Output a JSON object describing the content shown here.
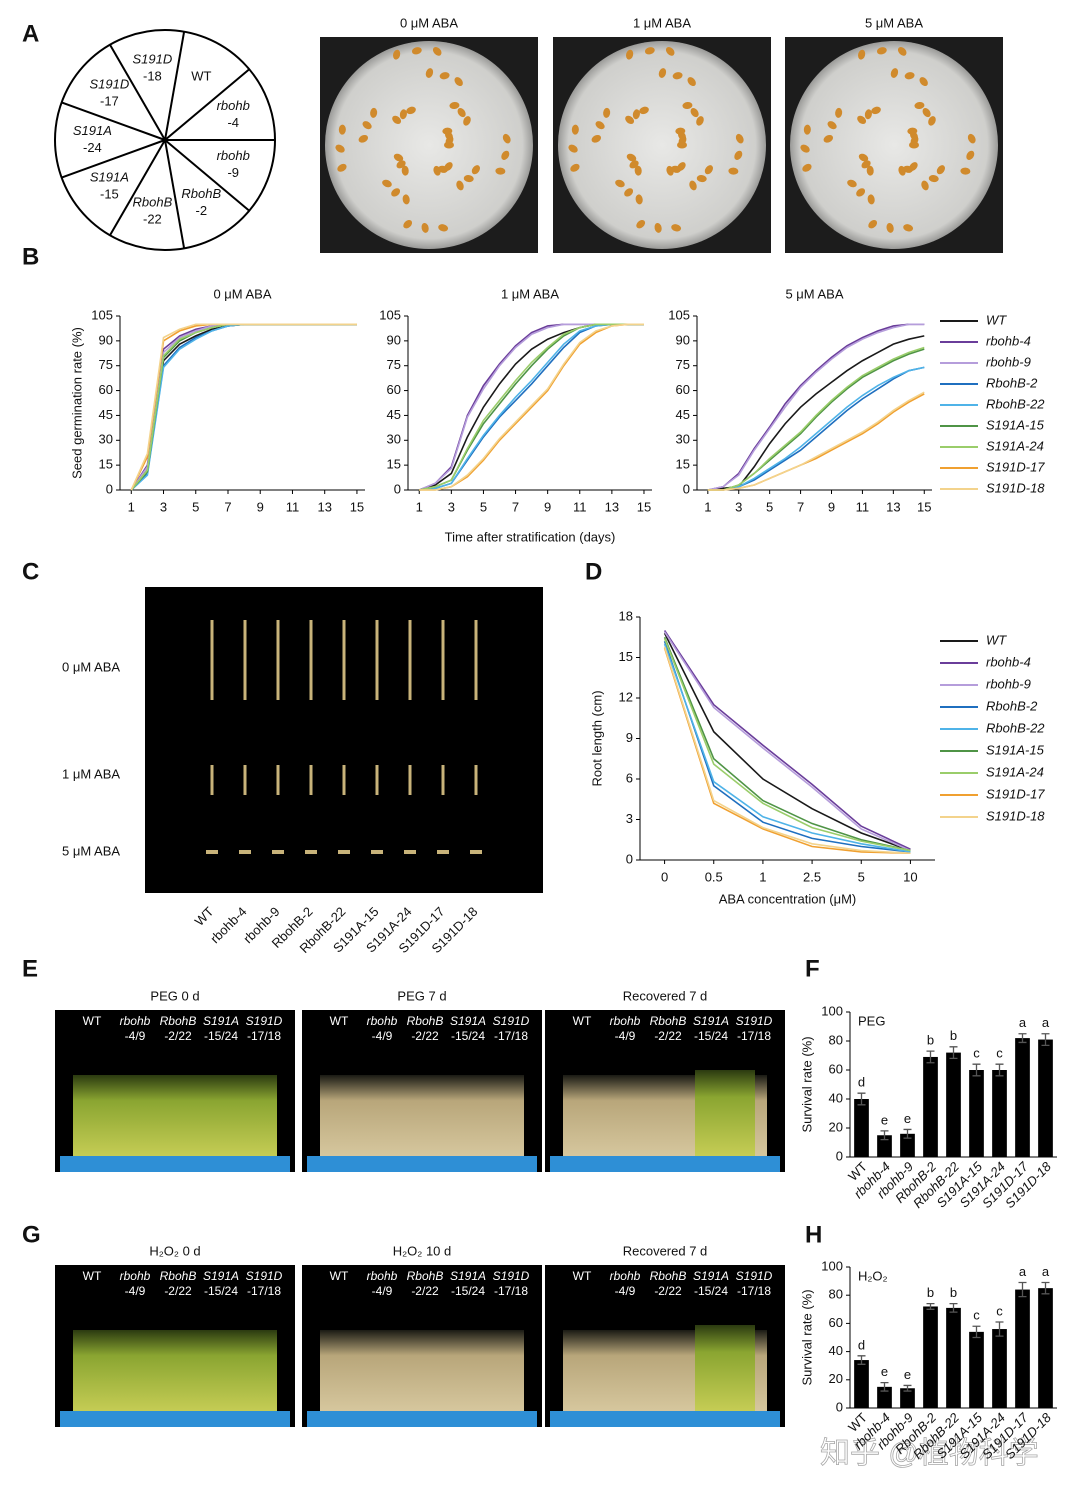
{
  "panel_letters": [
    "A",
    "B",
    "C",
    "D",
    "E",
    "F",
    "G",
    "H"
  ],
  "panel_a": {
    "sectors": [
      [
        "WT"
      ],
      [
        "rbohb",
        "-4"
      ],
      [
        "rbohb",
        "-9"
      ],
      [
        "RbohB",
        "-2"
      ],
      [
        "RbohB",
        "-22"
      ],
      [
        "S191A",
        "-15"
      ],
      [
        "S191A",
        "-24"
      ],
      [
        "S191D",
        "-17"
      ],
      [
        "S191D",
        "-18"
      ]
    ],
    "plate_titles": [
      "0 μM ABA",
      "1 μM ABA",
      "5 μM ABA"
    ]
  },
  "panel_c": {
    "row_labels": [
      "0 μM ABA",
      "1 μM ABA",
      "5 μM ABA"
    ],
    "column_labels": [
      "WT",
      "rbohb-4",
      "rbohb-9",
      "RbohB-2",
      "RbohB-22",
      "S191A-15",
      "S191A-24",
      "S191D-17",
      "S191D-18"
    ]
  },
  "photo_groups": [
    [
      "WT"
    ],
    [
      "rbohb",
      "-4/9"
    ],
    [
      "RbohB",
      "-2/22"
    ],
    [
      "S191A",
      "-15/24"
    ],
    [
      "S191D",
      "-17/18"
    ]
  ],
  "panel_e": {
    "titles": [
      "PEG 0 d",
      "PEG 7 d",
      "Recovered 7 d"
    ]
  },
  "panel_g": {
    "titles": [
      "H₂O₂ 0 d",
      "H₂O₂ 10 d",
      "Recovered 7 d"
    ]
  },
  "watermark": "知乎 @植物科学",
  "chart_data": [
    {
      "type": "line",
      "title": "0 μM ABA",
      "ylabel": "Seed germination rate (%)",
      "x": [
        1,
        2,
        3,
        4,
        5,
        6,
        7,
        8,
        9,
        10,
        11,
        12,
        13,
        14,
        15
      ],
      "xlim": [
        0.3,
        15.5
      ],
      "xticks": [
        1,
        3,
        5,
        7,
        9,
        11,
        13,
        15
      ],
      "ylim": [
        0,
        105
      ],
      "yticks": [
        0,
        15,
        30,
        45,
        60,
        75,
        90,
        105
      ],
      "series": [
        {
          "values": [
            0,
            12,
            78,
            88,
            93,
            97,
            99,
            100,
            100,
            100,
            100,
            100,
            100,
            100,
            100
          ]
        },
        {
          "values": [
            0,
            15,
            85,
            93,
            97,
            99,
            100,
            100,
            100,
            100,
            100,
            100,
            100,
            100,
            100
          ]
        },
        {
          "values": [
            0,
            14,
            83,
            92,
            96,
            99,
            100,
            100,
            100,
            100,
            100,
            100,
            100,
            100,
            100
          ]
        },
        {
          "values": [
            0,
            10,
            75,
            86,
            92,
            96,
            99,
            100,
            100,
            100,
            100,
            100,
            100,
            100,
            100
          ]
        },
        {
          "values": [
            0,
            9,
            74,
            85,
            91,
            96,
            99,
            100,
            100,
            100,
            100,
            100,
            100,
            100,
            100
          ]
        },
        {
          "values": [
            0,
            11,
            80,
            90,
            95,
            98,
            100,
            100,
            100,
            100,
            100,
            100,
            100,
            100,
            100
          ]
        },
        {
          "values": [
            0,
            12,
            81,
            91,
            95,
            98,
            100,
            100,
            100,
            100,
            100,
            100,
            100,
            100,
            100
          ]
        },
        {
          "values": [
            0,
            20,
            90,
            96,
            99,
            100,
            100,
            100,
            100,
            100,
            100,
            100,
            100,
            100,
            100
          ]
        },
        {
          "values": [
            0,
            22,
            92,
            97,
            100,
            100,
            100,
            100,
            100,
            100,
            100,
            100,
            100,
            100,
            100
          ]
        }
      ]
    },
    {
      "type": "line",
      "title": "1 μM ABA",
      "xlabel": "Time after stratification (days)",
      "x": [
        1,
        2,
        3,
        4,
        5,
        6,
        7,
        8,
        9,
        10,
        11,
        12,
        13,
        14,
        15
      ],
      "xlim": [
        0.3,
        15.5
      ],
      "xticks": [
        1,
        3,
        5,
        7,
        9,
        11,
        13,
        15
      ],
      "ylim": [
        0,
        105
      ],
      "yticks": [
        0,
        15,
        30,
        45,
        60,
        75,
        90,
        105
      ],
      "series": [
        {
          "values": [
            0,
            3,
            10,
            32,
            50,
            64,
            76,
            85,
            91,
            95,
            98,
            100,
            100,
            100,
            100
          ]
        },
        {
          "values": [
            0,
            4,
            14,
            45,
            63,
            76,
            87,
            95,
            99,
            100,
            100,
            100,
            100,
            100,
            100
          ]
        },
        {
          "values": [
            0,
            4,
            13,
            44,
            61,
            75,
            86,
            94,
            98,
            100,
            100,
            100,
            100,
            100,
            100
          ]
        },
        {
          "values": [
            0,
            1,
            4,
            18,
            32,
            44,
            54,
            64,
            75,
            86,
            95,
            99,
            100,
            100,
            100
          ]
        },
        {
          "values": [
            0,
            1,
            4,
            19,
            33,
            45,
            56,
            66,
            77,
            88,
            96,
            99,
            100,
            100,
            100
          ]
        },
        {
          "values": [
            0,
            2,
            6,
            24,
            40,
            52,
            64,
            75,
            85,
            93,
            98,
            100,
            100,
            100,
            100
          ]
        },
        {
          "values": [
            0,
            2,
            6,
            25,
            42,
            54,
            66,
            77,
            86,
            94,
            98,
            100,
            100,
            100,
            100
          ]
        },
        {
          "values": [
            0,
            0,
            2,
            8,
            18,
            30,
            40,
            50,
            60,
            75,
            88,
            95,
            99,
            100,
            100
          ]
        },
        {
          "values": [
            0,
            0,
            2,
            9,
            19,
            31,
            41,
            51,
            61,
            76,
            89,
            96,
            99,
            100,
            100
          ]
        }
      ]
    },
    {
      "type": "line",
      "title": "5 μM ABA",
      "x": [
        1,
        2,
        3,
        4,
        5,
        6,
        7,
        8,
        9,
        10,
        11,
        12,
        13,
        14,
        15
      ],
      "xlim": [
        0.3,
        15.5
      ],
      "xticks": [
        1,
        3,
        5,
        7,
        9,
        11,
        13,
        15
      ],
      "ylim": [
        0,
        105
      ],
      "yticks": [
        0,
        15,
        30,
        45,
        60,
        75,
        90,
        105
      ],
      "series": [
        {
          "name": "WT",
          "color": "#1a1a1a",
          "values": [
            0,
            1,
            2,
            14,
            28,
            40,
            50,
            58,
            65,
            72,
            78,
            83,
            88,
            91,
            93
          ]
        },
        {
          "name": "rbohb-4",
          "color": "#6a3d9a",
          "values": [
            0,
            2,
            10,
            25,
            38,
            52,
            63,
            72,
            80,
            87,
            92,
            96,
            99,
            100,
            100
          ]
        },
        {
          "name": "rbohb-9",
          "color": "#b59ddb",
          "values": [
            0,
            2,
            9,
            24,
            37,
            50,
            62,
            71,
            79,
            86,
            91,
            95,
            98,
            100,
            100
          ]
        },
        {
          "name": "RbohB-2",
          "color": "#1f6fbf",
          "values": [
            0,
            0,
            2,
            6,
            12,
            18,
            24,
            32,
            40,
            48,
            55,
            61,
            67,
            72,
            74
          ]
        },
        {
          "name": "RbohB-22",
          "color": "#4fb3e8",
          "values": [
            0,
            0,
            2,
            7,
            13,
            19,
            26,
            34,
            42,
            50,
            57,
            63,
            68,
            72,
            74
          ]
        },
        {
          "name": "S191A-15",
          "color": "#4f9446",
          "values": [
            0,
            0,
            3,
            10,
            18,
            26,
            34,
            44,
            53,
            61,
            68,
            73,
            78,
            82,
            85
          ]
        },
        {
          "name": "S191A-24",
          "color": "#9acd6a",
          "values": [
            0,
            0,
            3,
            10,
            19,
            27,
            35,
            45,
            54,
            62,
            69,
            74,
            79,
            83,
            86
          ]
        },
        {
          "name": "S191D-17",
          "color": "#f0a030",
          "values": [
            0,
            0,
            1,
            3,
            7,
            11,
            15,
            19,
            24,
            29,
            34,
            40,
            47,
            53,
            58
          ]
        },
        {
          "name": "S191D-18",
          "color": "#f3d38c",
          "values": [
            0,
            0,
            1,
            3,
            7,
            11,
            15,
            20,
            25,
            30,
            35,
            41,
            48,
            54,
            59
          ]
        }
      ]
    },
    {
      "type": "line",
      "xlabel": "ABA concentration (μM)",
      "ylabel": "Root length (cm)",
      "categories": [
        "0",
        "0.5",
        "1",
        "2.5",
        "5",
        "10"
      ],
      "ylim": [
        0,
        18
      ],
      "yticks": [
        0,
        3,
        6,
        9,
        12,
        15,
        18
      ],
      "series": [
        {
          "name": "WT",
          "color": "#1a1a1a",
          "values": [
            16.8,
            9.5,
            6,
            3.8,
            2,
            0.7
          ]
        },
        {
          "name": "rbohb-4",
          "color": "#6a3d9a",
          "values": [
            17,
            11.5,
            8.5,
            5.6,
            2.5,
            0.8
          ]
        },
        {
          "name": "rbohb-9",
          "color": "#b59ddb",
          "values": [
            16.9,
            11.3,
            8.3,
            5.4,
            2.3,
            0.7
          ]
        },
        {
          "name": "RbohB-2",
          "color": "#1f6fbf",
          "values": [
            16.2,
            5.5,
            2.8,
            1.6,
            1,
            0.6
          ]
        },
        {
          "name": "RbohB-22",
          "color": "#4fb3e8",
          "values": [
            16,
            5.8,
            3.2,
            2,
            1.2,
            0.6
          ]
        },
        {
          "name": "S191A-15",
          "color": "#4f9446",
          "values": [
            16.5,
            7.5,
            4.4,
            2.7,
            1.5,
            0.7
          ]
        },
        {
          "name": "S191A-24",
          "color": "#9acd6a",
          "values": [
            16.4,
            7.1,
            4.2,
            2.4,
            1.4,
            0.7
          ]
        },
        {
          "name": "S191D-17",
          "color": "#f0a030",
          "values": [
            15.7,
            4.2,
            2.3,
            1,
            0.6,
            0.5
          ]
        },
        {
          "name": "S191D-18",
          "color": "#f3d38c",
          "values": [
            15.8,
            4.4,
            2.4,
            1.2,
            0.7,
            0.5
          ]
        }
      ]
    },
    {
      "type": "bar",
      "label": "PEG",
      "ylabel": "Survival rate (%)",
      "color": "#000000",
      "categories": [
        "WT",
        "rbohb-4",
        "rbohb-9",
        "RbohB-2",
        "RbohB-22",
        "S191A-15",
        "S191A-24",
        "S191D-17",
        "S191D-18"
      ],
      "values": [
        40,
        15,
        16,
        69,
        72,
        60,
        60,
        82,
        81
      ],
      "errors": [
        4,
        3,
        3,
        4,
        4,
        4,
        4,
        3,
        4
      ],
      "letters": [
        "d",
        "e",
        "e",
        "b",
        "b",
        "c",
        "c",
        "a",
        "a"
      ],
      "ylim": [
        0,
        100
      ],
      "yticks": [
        0,
        20,
        40,
        60,
        80,
        100
      ]
    },
    {
      "type": "bar",
      "label": "H₂O₂",
      "ylabel": "Survival rate (%)",
      "color": "#000000",
      "categories": [
        "WT",
        "rbohb-4",
        "rbohb-9",
        "RbohB-2",
        "RbohB-22",
        "S191A-15",
        "S191A-24",
        "S191D-17",
        "S191D-18"
      ],
      "values": [
        34,
        15,
        14,
        72,
        71,
        54,
        56,
        84,
        85
      ],
      "errors": [
        3,
        3,
        2,
        2,
        3,
        4,
        5,
        5,
        4
      ],
      "letters": [
        "d",
        "e",
        "e",
        "b",
        "b",
        "c",
        "c",
        "a",
        "a"
      ],
      "ylim": [
        0,
        100
      ],
      "yticks": [
        0,
        20,
        40,
        60,
        80,
        100
      ]
    }
  ]
}
